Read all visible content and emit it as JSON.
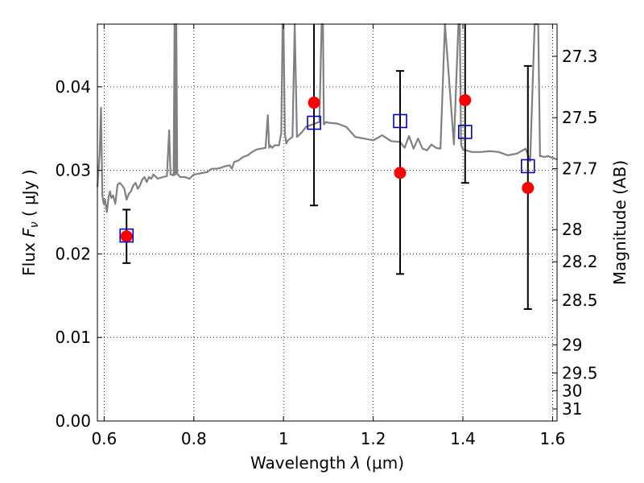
{
  "chart_data": {
    "type": "scatter",
    "xlabel": "Wavelength  λ (μm)",
    "ylabel": "Flux  Fν  ( μJy )",
    "ylabel_parts": {
      "prefix": "Flux  ",
      "sym": "F",
      "sub": "ν",
      "suffix": "  ( μJy )"
    },
    "xlabel_parts": {
      "prefix": "Wavelength  ",
      "sym": "λ",
      "suffix": " (μm)"
    },
    "y2label": "Magnitude (AB)",
    "xlim": [
      0.585,
      1.61
    ],
    "ylim": [
      0.0,
      0.0475
    ],
    "grid": true,
    "x_ticks": [
      0.6,
      0.8,
      1.0,
      1.2,
      1.4,
      1.6
    ],
    "x_tick_labels": [
      "0.6",
      "0.8",
      "1",
      "1.2",
      "1.4",
      "1.6"
    ],
    "y_ticks": [
      0.0,
      0.01,
      0.02,
      0.03,
      0.04
    ],
    "y_tick_labels": [
      "0.00",
      "0.01",
      "0.02",
      "0.03",
      "0.04"
    ],
    "mag_ticks": [
      27.3,
      27.5,
      27.7,
      28,
      28.2,
      28.5,
      29,
      29.5,
      30,
      31
    ],
    "mag_tick_labels": [
      "27.3",
      "27.5",
      "27.7",
      "28",
      "28.2",
      "28.5",
      "29",
      "29.5",
      "30",
      "31"
    ],
    "series": [
      {
        "name": "model-spectrum",
        "kind": "line",
        "color": "#808080",
        "x": [
          0.585,
          0.59,
          0.593,
          0.596,
          0.599,
          0.602,
          0.606,
          0.61,
          0.613,
          0.616,
          0.62,
          0.625,
          0.63,
          0.635,
          0.64,
          0.645,
          0.65,
          0.655,
          0.66,
          0.665,
          0.67,
          0.675,
          0.68,
          0.685,
          0.69,
          0.695,
          0.7,
          0.705,
          0.71,
          0.72,
          0.73,
          0.74,
          0.745,
          0.748,
          0.75,
          0.755,
          0.757,
          0.759,
          0.761,
          0.763,
          0.766,
          0.77,
          0.78,
          0.79,
          0.8,
          0.81,
          0.82,
          0.83,
          0.84,
          0.85,
          0.86,
          0.87,
          0.88,
          0.885,
          0.89,
          0.9,
          0.91,
          0.92,
          0.93,
          0.94,
          0.95,
          0.96,
          0.965,
          0.968,
          0.97,
          0.975,
          0.98,
          0.99,
          0.995,
          0.998,
          1.0,
          1.003,
          1.006,
          1.01,
          1.02,
          1.025,
          1.03,
          1.04,
          1.05,
          1.06,
          1.07,
          1.08,
          1.085,
          1.088,
          1.09,
          1.095,
          1.1,
          1.12,
          1.14,
          1.16,
          1.18,
          1.2,
          1.22,
          1.24,
          1.26,
          1.27,
          1.28,
          1.29,
          1.3,
          1.31,
          1.32,
          1.33,
          1.34,
          1.35,
          1.36,
          1.38,
          1.39,
          1.393,
          1.396,
          1.4,
          1.42,
          1.44,
          1.46,
          1.48,
          1.5,
          1.52,
          1.54,
          1.55,
          1.56,
          1.565,
          1.568,
          1.572,
          1.576,
          1.58,
          1.59,
          1.6,
          1.61
        ],
        "y": [
          0.028,
          0.032,
          0.0375,
          0.027,
          0.026,
          0.0265,
          0.025,
          0.0268,
          0.0275,
          0.0267,
          0.027,
          0.026,
          0.0283,
          0.0285,
          0.0282,
          0.0278,
          0.0265,
          0.0272,
          0.0275,
          0.0282,
          0.0285,
          0.0278,
          0.0282,
          0.0289,
          0.0292,
          0.0286,
          0.0292,
          0.029,
          0.0295,
          0.029,
          0.0292,
          0.0293,
          0.0348,
          0.0295,
          0.0295,
          0.0294,
          0.0475,
          0.0295,
          0.0475,
          0.0296,
          0.0294,
          0.0292,
          0.0292,
          0.029,
          0.0295,
          0.0296,
          0.0297,
          0.0298,
          0.0302,
          0.0302,
          0.0303,
          0.0305,
          0.0306,
          0.0302,
          0.031,
          0.0312,
          0.0316,
          0.0318,
          0.0322,
          0.0325,
          0.0326,
          0.0327,
          0.0366,
          0.0327,
          0.033,
          0.0327,
          0.033,
          0.033,
          0.0345,
          0.0475,
          0.0475,
          0.0345,
          0.0332,
          0.0336,
          0.034,
          0.0475,
          0.034,
          0.0345,
          0.0352,
          0.0354,
          0.0356,
          0.0358,
          0.0475,
          0.0475,
          0.0355,
          0.0358,
          0.0357,
          0.0356,
          0.0352,
          0.034,
          0.0338,
          0.0336,
          0.0342,
          0.0335,
          0.0334,
          0.0327,
          0.0341,
          0.0326,
          0.0338,
          0.0326,
          0.0324,
          0.0331,
          0.0327,
          0.0326,
          0.0475,
          0.0331,
          0.0475,
          0.0475,
          0.0331,
          0.0325,
          0.0322,
          0.0322,
          0.0323,
          0.0322,
          0.0318,
          0.032,
          0.0326,
          0.0311,
          0.0475,
          0.0475,
          0.0475,
          0.0317,
          0.0317,
          0.0316,
          0.0317,
          0.0315,
          0.0313
        ]
      },
      {
        "name": "observed-fluxes",
        "kind": "points",
        "color": "#ff0000",
        "x": [
          0.65,
          1.068,
          1.26,
          1.405,
          1.545
        ],
        "y": [
          0.0221,
          0.0381,
          0.0297,
          0.0384,
          0.0279
        ]
      },
      {
        "name": "model-band-fluxes",
        "kind": "open-squares",
        "color": "#0000cc",
        "x": [
          0.65,
          1.068,
          1.26,
          1.405,
          1.545
        ],
        "y": [
          0.0222,
          0.0357,
          0.0359,
          0.0346,
          0.0305
        ]
      },
      {
        "name": "error-bars",
        "kind": "errorbar",
        "color": "#000000",
        "x": [
          0.65,
          1.068,
          1.26,
          1.405,
          1.545
        ],
        "y_low": [
          0.0189,
          0.0258,
          0.0176,
          0.0285,
          0.0134
        ],
        "y_high": [
          0.0253,
          0.0475,
          0.0419,
          0.0475,
          0.0425
        ]
      }
    ]
  }
}
